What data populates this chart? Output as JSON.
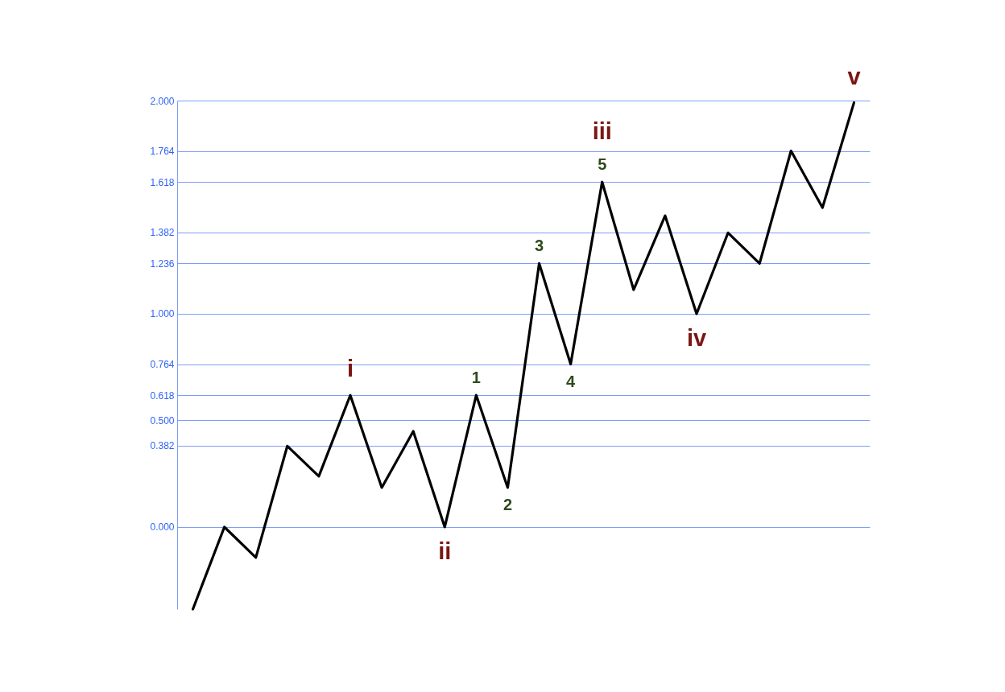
{
  "chart_data": {
    "type": "line",
    "categories": [
      null,
      null,
      null,
      null,
      null,
      null,
      null,
      null,
      null,
      null,
      null,
      null,
      null,
      null,
      null,
      null,
      null,
      null,
      null,
      null,
      null,
      null
    ],
    "series": [
      {
        "color": "#000000",
        "values": [
          -0.385,
          0,
          -0.143,
          0.38,
          0.238,
          0.618,
          0.185,
          0.449,
          0,
          0.618,
          0.185,
          1.236,
          0.764,
          1.618,
          1.113,
          1.46,
          1.0,
          1.38,
          1.236,
          1.764,
          1.498,
          1.99
        ]
      }
    ],
    "ylim": [
      -0.385,
      2
    ],
    "yticks": [
      {
        "value": 0,
        "label": "0.000"
      },
      {
        "value": 0.382,
        "label": "0.382"
      },
      {
        "value": 0.5,
        "label": "0.500"
      },
      {
        "value": 0.618,
        "label": "0.618"
      },
      {
        "value": 0.764,
        "label": "0.764"
      },
      {
        "value": 1,
        "label": "1.000"
      },
      {
        "value": 1.236,
        "label": "1.236"
      },
      {
        "value": 1.382,
        "label": "1.382"
      },
      {
        "value": 1.618,
        "label": "1.618"
      },
      {
        "value": 1.764,
        "label": "1.764"
      },
      {
        "value": 2,
        "label": "2.000"
      }
    ],
    "grid": "y",
    "tick_labels": "y",
    "marker": "none",
    "line_style": "solid",
    "annotations": [
      {
        "text": "i",
        "y": 0.618
      },
      {
        "text": "ii",
        "y": 0
      },
      {
        "text": "1",
        "y": 0.618
      },
      {
        "text": "2",
        "y": 0.185
      },
      {
        "text": "3",
        "y": 1.236
      },
      {
        "text": "4",
        "y": 0.764
      },
      {
        "text": "iii",
        "y": 1.618
      },
      {
        "text": "5",
        "y": 1.618
      },
      {
        "text": "iv",
        "y": 1.0
      },
      {
        "text": "v",
        "y": 1.99
      }
    ]
  }
}
